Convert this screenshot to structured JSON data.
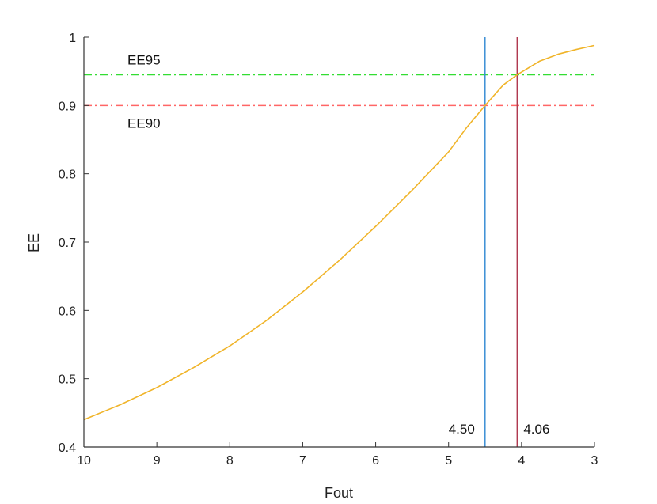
{
  "chart_data": {
    "type": "line",
    "xlabel": "Fout",
    "ylabel": "EE",
    "xlim": [
      10,
      3
    ],
    "ylim": [
      0.4,
      1
    ],
    "x_reversed": true,
    "grid": false,
    "xticks": [
      "10",
      "9",
      "8",
      "7",
      "6",
      "5",
      "4",
      "3"
    ],
    "yticks": [
      "0.4",
      "0.5",
      "0.6",
      "0.7",
      "0.8",
      "0.9",
      "1"
    ],
    "series": [
      {
        "color": "#f0b429",
        "x": [
          10,
          9.5,
          9,
          8.5,
          8,
          7.5,
          7,
          6.5,
          6,
          5.5,
          5,
          4.75,
          4.5,
          4.25,
          4.06,
          3.75,
          3.5,
          3.25,
          3
        ],
        "y": [
          0.44,
          0.462,
          0.487,
          0.516,
          0.548,
          0.585,
          0.627,
          0.673,
          0.723,
          0.776,
          0.832,
          0.868,
          0.9,
          0.93,
          0.945,
          0.965,
          0.975,
          0.982,
          0.988
        ]
      }
    ],
    "hlines": [
      {
        "y": 0.945,
        "color": "#33dd33",
        "style": "dashdot",
        "label": "EE95"
      },
      {
        "y": 0.9,
        "color": "#ff6666",
        "style": "dashdot",
        "label": "EE90"
      }
    ],
    "vlines": [
      {
        "x": 4.5,
        "color": "#3b8fd4",
        "label": "4.50"
      },
      {
        "x": 4.06,
        "color": "#b03a50",
        "label": "4.06"
      }
    ]
  }
}
